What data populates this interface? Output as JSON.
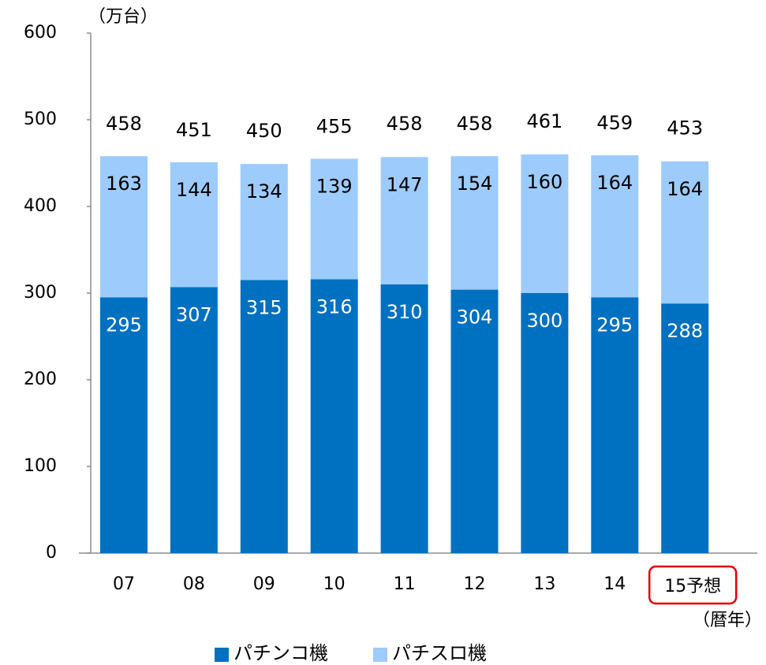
{
  "chart_data": {
    "type": "stacked_bar",
    "y_label": "（万台）",
    "x_label": "（暦年）",
    "categories": [
      "07",
      "08",
      "09",
      "10",
      "11",
      "12",
      "13",
      "14",
      "15予想"
    ],
    "series": [
      {
        "name": "パチンコ機",
        "color": "#0070c0",
        "values": [
          295,
          307,
          315,
          316,
          310,
          304,
          300,
          295,
          288
        ]
      },
      {
        "name": "パチスロ機",
        "color": "#9dcbfb",
        "values": [
          163,
          144,
          134,
          139,
          147,
          154,
          160,
          164,
          164
        ]
      }
    ],
    "totals": [
      458,
      451,
      450,
      455,
      458,
      458,
      461,
      459,
      453
    ],
    "ylim": [
      0,
      600
    ],
    "yticks": [
      0,
      100,
      200,
      300,
      400,
      500,
      600
    ],
    "grid": false,
    "legend": "bottom"
  }
}
